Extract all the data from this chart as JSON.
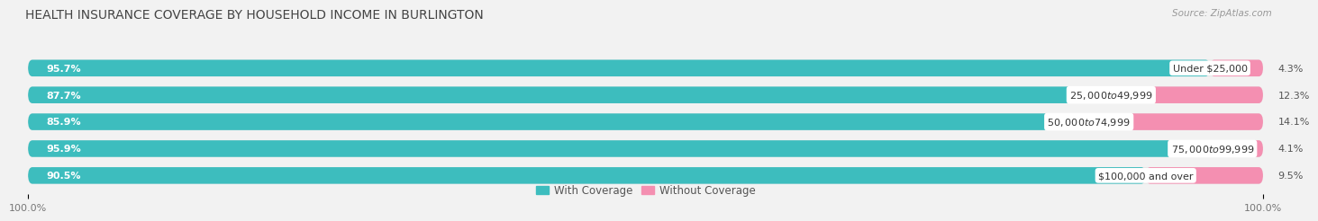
{
  "title": "HEALTH INSURANCE COVERAGE BY HOUSEHOLD INCOME IN BURLINGTON",
  "source": "Source: ZipAtlas.com",
  "categories": [
    "Under $25,000",
    "$25,000 to $49,999",
    "$50,000 to $74,999",
    "$75,000 to $99,999",
    "$100,000 and over"
  ],
  "with_coverage": [
    95.7,
    87.7,
    85.9,
    95.9,
    90.5
  ],
  "without_coverage": [
    4.3,
    12.3,
    14.1,
    4.1,
    9.5
  ],
  "color_with": "#3dbdbe",
  "color_without": "#f48fb1",
  "bg_color": "#f2f2f2",
  "bar_bg_color": "#e4e4e4",
  "title_fontsize": 10,
  "label_fontsize": 8,
  "tick_fontsize": 8,
  "legend_fontsize": 8.5,
  "bar_height": 0.62,
  "xlim": [
    0,
    100
  ]
}
